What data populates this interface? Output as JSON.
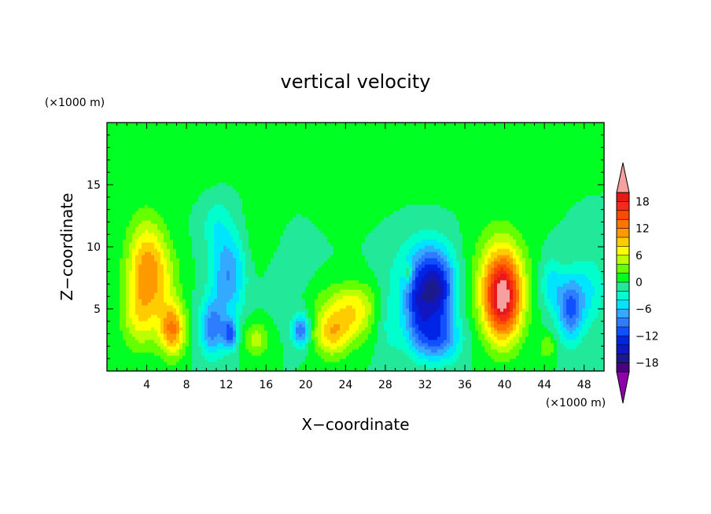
{
  "chart_data": {
    "type": "heatmap",
    "title": "vertical velocity",
    "xlabel": "X−coordinate",
    "ylabel": "Z−coordinate",
    "x_unit": "(×1000 m)",
    "y_unit": "(×1000 m)",
    "xlim": [
      0,
      50
    ],
    "ylim": [
      0,
      20
    ],
    "x_ticks": [
      4,
      8,
      12,
      16,
      20,
      24,
      28,
      32,
      36,
      40,
      44,
      48
    ],
    "x_tick_labels": [
      "4",
      "8",
      "12",
      "16",
      "20",
      "24",
      "28",
      "32",
      "36",
      "40",
      "44",
      "48"
    ],
    "y_ticks": [
      5,
      10,
      15
    ],
    "y_tick_labels": [
      "5",
      "10",
      "15"
    ],
    "colorbar": {
      "levels": [
        -20,
        -18,
        -16,
        -14,
        -12,
        -10,
        -8,
        -6,
        -4,
        -2,
        0,
        2,
        4,
        6,
        8,
        10,
        12,
        14,
        16,
        18,
        20
      ],
      "colors": [
        "#4b0082",
        "#1a1a8c",
        "#0f17c2",
        "#0024e6",
        "#1050ff",
        "#2f7dff",
        "#33aaff",
        "#00e5ff",
        "#00ffcc",
        "#22e89a",
        "#00ff22",
        "#66ff00",
        "#bbff00",
        "#ffff00",
        "#ffcc00",
        "#ff9900",
        "#ff7300",
        "#ff4a00",
        "#f62a18",
        "#e81818"
      ],
      "under_color": "#8e00a8",
      "over_color": "#f6a0a0",
      "tick_values": [
        -18,
        -12,
        -6,
        0,
        6,
        12,
        18
      ],
      "tick_labels": [
        "−18",
        "−12",
        "−6",
        "0",
        "6",
        "12",
        "18"
      ],
      "extend": "both"
    },
    "background_value": 0,
    "features": [
      {
        "x": 4.0,
        "z": 8.6,
        "sx": 1.4,
        "sz": 2.6,
        "amp": 10
      },
      {
        "x": 3.4,
        "z": 4.5,
        "sx": 1.4,
        "sz": 2.0,
        "amp": 6
      },
      {
        "x": 6.6,
        "z": 3.4,
        "sx": 0.9,
        "sz": 1.5,
        "amp": 12
      },
      {
        "x": 5.8,
        "z": 7.5,
        "sx": 1.2,
        "sz": 1.8,
        "amp": 3
      },
      {
        "x": 10.6,
        "z": 3.5,
        "sx": 0.9,
        "sz": 1.6,
        "amp": -9
      },
      {
        "x": 12.2,
        "z": 7.8,
        "sx": 1.2,
        "sz": 2.4,
        "amp": -8
      },
      {
        "x": 12.4,
        "z": 3.0,
        "sx": 0.5,
        "sz": 0.8,
        "amp": -10
      },
      {
        "x": 11.0,
        "z": 11.8,
        "sx": 1.0,
        "sz": 1.5,
        "amp": -3
      },
      {
        "x": 15.0,
        "z": 2.6,
        "sx": 0.9,
        "sz": 1.0,
        "amp": 5
      },
      {
        "x": 15.8,
        "z": 10.5,
        "sx": 1.4,
        "sz": 2.6,
        "amp": 2
      },
      {
        "x": 19.5,
        "z": 3.3,
        "sx": 0.6,
        "sz": 0.9,
        "amp": -10
      },
      {
        "x": 17.6,
        "z": 8.0,
        "sx": 1.6,
        "sz": 2.2,
        "amp": -2
      },
      {
        "x": 22.6,
        "z": 3.2,
        "sx": 1.3,
        "sz": 1.4,
        "amp": 9
      },
      {
        "x": 25.0,
        "z": 4.4,
        "sx": 1.4,
        "sz": 1.4,
        "amp": 6
      },
      {
        "x": 24.2,
        "z": 6.0,
        "sx": 2.4,
        "sz": 1.0,
        "amp": 3
      },
      {
        "x": 28.5,
        "z": 4.5,
        "sx": 1.0,
        "sz": 2.5,
        "amp": -3
      },
      {
        "x": 33.3,
        "z": 6.3,
        "sx": 1.2,
        "sz": 2.0,
        "amp": -13
      },
      {
        "x": 31.2,
        "z": 5.2,
        "sx": 1.0,
        "sz": 2.0,
        "amp": -10
      },
      {
        "x": 33.2,
        "z": 2.6,
        "sx": 1.6,
        "sz": 1.3,
        "amp": -9
      },
      {
        "x": 32.0,
        "z": 8.5,
        "sx": 1.8,
        "sz": 1.8,
        "amp": -6
      },
      {
        "x": 30.3,
        "z": 8.0,
        "sx": 0.3,
        "sz": 0.5,
        "amp": 6
      },
      {
        "x": 39.8,
        "z": 5.9,
        "sx": 1.3,
        "sz": 2.4,
        "amp": 18
      },
      {
        "x": 39.5,
        "z": 7.5,
        "sx": 2.0,
        "sz": 3.0,
        "amp": 5
      },
      {
        "x": 46.6,
        "z": 5.0,
        "sx": 0.9,
        "sz": 1.8,
        "amp": -10
      },
      {
        "x": 44.7,
        "z": 7.0,
        "sx": 0.8,
        "sz": 1.5,
        "amp": -5
      },
      {
        "x": 44.3,
        "z": 2.0,
        "sx": 0.6,
        "sz": 0.7,
        "amp": 4
      },
      {
        "x": 48.5,
        "z": 6.5,
        "sx": 1.2,
        "sz": 2.0,
        "amp": -4
      },
      {
        "x": 24.0,
        "z": 16.5,
        "sx": 3.0,
        "sz": 2.0,
        "amp": 1.5
      },
      {
        "x": 36.0,
        "z": 17.5,
        "sx": 4.0,
        "sz": 2.0,
        "amp": 1.5
      },
      {
        "x": 8.0,
        "z": 17.5,
        "sx": 3.0,
        "sz": 2.0,
        "amp": 1.2
      }
    ]
  }
}
